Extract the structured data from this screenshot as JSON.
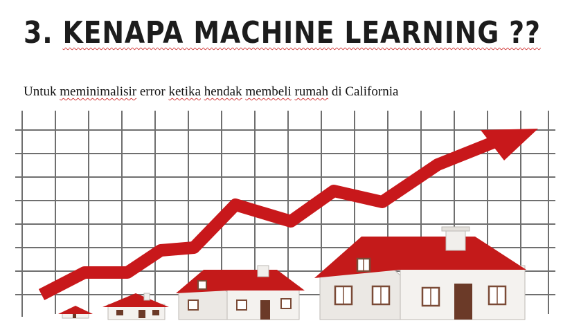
{
  "slide": {
    "title_number": "3.",
    "title_text": "KENAPA MACHINE LEARNING ??",
    "subtitle_words": [
      "Untuk",
      "meminimalisir",
      "error",
      "ketika",
      "hendak",
      "membeli",
      "rumah",
      "di",
      "California"
    ]
  },
  "illustration": {
    "description_icon": "rising-arrow-over-houses",
    "colors": {
      "arrow": "#c8181b",
      "roof": "#c41a1a",
      "wall": "#f4f2ef",
      "grid": "#6f6f6f",
      "door": "#6b3a28"
    }
  }
}
